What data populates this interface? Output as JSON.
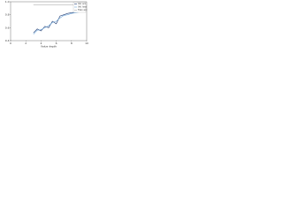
{
  "chart_data": {
    "type": "line",
    "xlabel": "Value depth",
    "x": [
      3,
      3.5,
      4,
      4.5,
      5,
      5.5,
      6,
      6.5,
      7,
      7.5,
      8,
      8.5,
      9
    ],
    "series": [
      {
        "name": "Val. acc",
        "color": "#1f3b73",
        "values": [
          0.52,
          0.58,
          0.55,
          0.62,
          0.6,
          0.7,
          0.66,
          0.78,
          0.8,
          0.82,
          0.83,
          0.84,
          0.85
        ]
      },
      {
        "name": "Val. loss",
        "color": "#6fa8dc",
        "values": [
          0.5,
          0.56,
          0.57,
          0.6,
          0.63,
          0.68,
          0.7,
          0.75,
          0.79,
          0.8,
          0.82,
          0.83,
          0.84
        ]
      },
      {
        "name": "Train acc",
        "color": "#b0b0b0",
        "values": [
          0.95,
          0.95,
          0.95,
          0.95,
          0.95,
          0.95,
          0.95,
          0.95,
          0.95,
          0.95,
          0.95,
          0.95,
          0.95
        ]
      }
    ],
    "xlim": [
      0,
      10
    ],
    "xticks": [
      0,
      2,
      4,
      6,
      8,
      10
    ],
    "ylim": [
      0.4,
      1.0
    ],
    "yticks": [
      0.4,
      0.6,
      0.8,
      {
        "value": 1.0,
        "label": "1.0"
      }
    ],
    "legend": "upper right",
    "grid": false
  }
}
